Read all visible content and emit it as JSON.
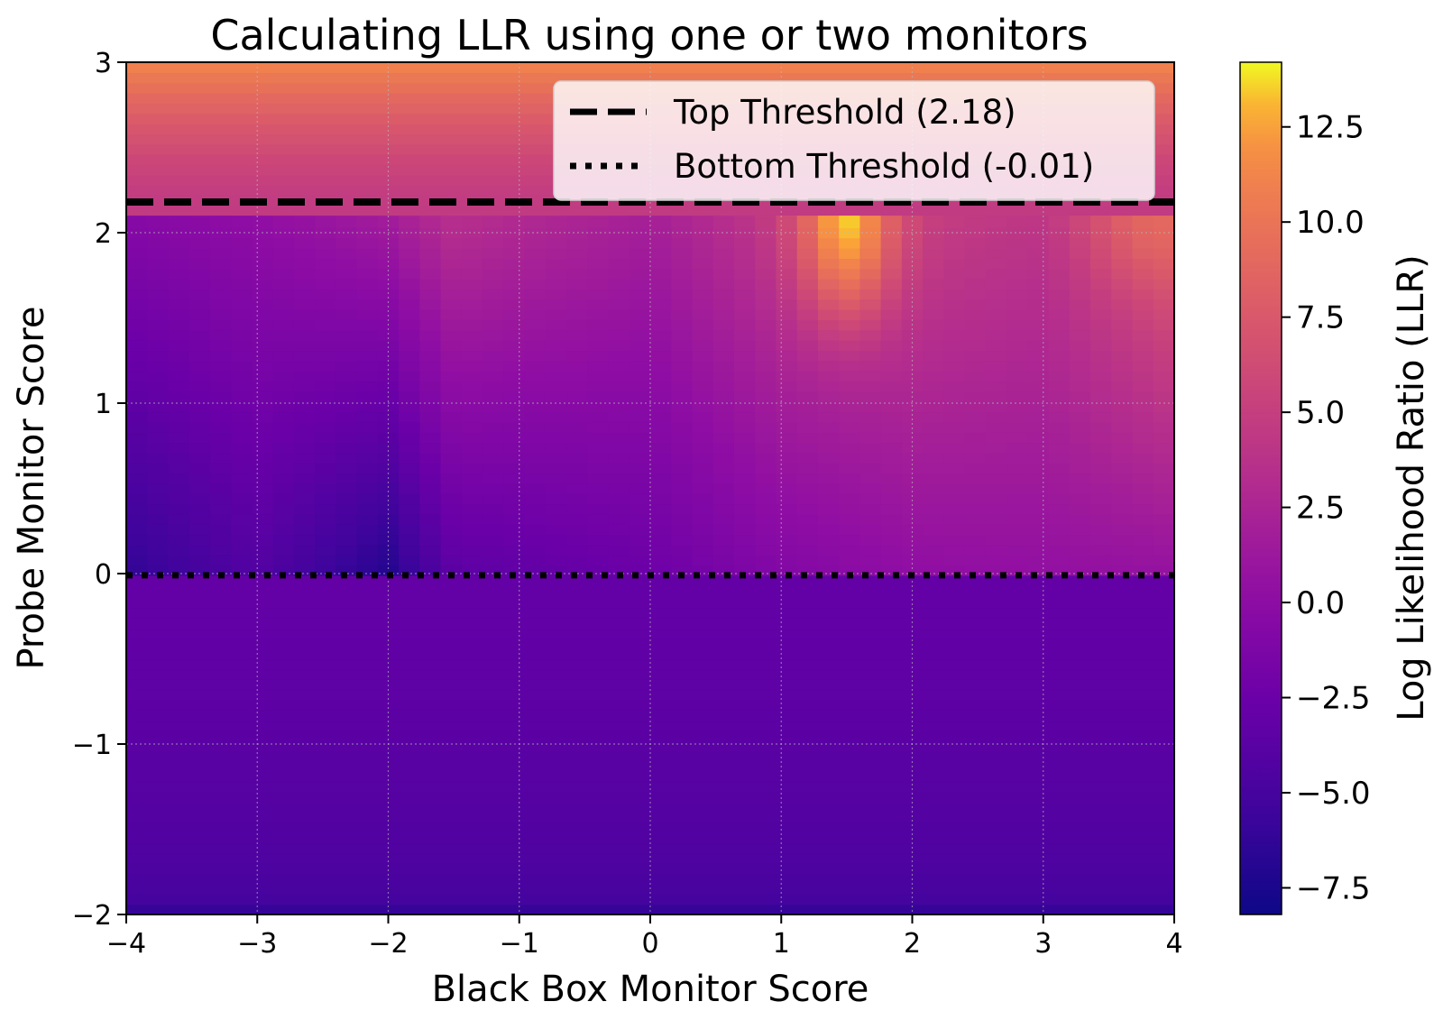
{
  "chart_data": {
    "type": "heatmap",
    "title": "Calculating LLR using one or two monitors",
    "xlabel": "Black Box Monitor Score",
    "ylabel": "Probe Monitor Score",
    "colorbar_label": "Log Likelihood Ratio (LLR)",
    "xlim": [
      -4,
      4
    ],
    "ylim": [
      -2,
      3
    ],
    "x_ticks": [
      -4,
      -3,
      -2,
      -1,
      0,
      1,
      2,
      3,
      4
    ],
    "x_tick_labels": [
      "−4",
      "−3",
      "−2",
      "−1",
      "0",
      "1",
      "2",
      "3",
      "4"
    ],
    "y_ticks": [
      -2,
      -1,
      0,
      1,
      2,
      3
    ],
    "y_tick_labels": [
      "−2",
      "−1",
      "0",
      "1",
      "2",
      "3"
    ],
    "colorbar_range": [
      -8.2,
      14.2
    ],
    "colorbar_ticks": [
      -7.5,
      -5.0,
      -2.5,
      0.0,
      2.5,
      5.0,
      7.5,
      10.0,
      12.5
    ],
    "colorbar_tick_labels": [
      "−7.5",
      "−5.0",
      "−2.5",
      "0.0",
      "2.5",
      "5.0",
      "7.5",
      "10.0",
      "12.5"
    ],
    "colormap": "plasma",
    "grid": true,
    "legend_position": "upper-right",
    "thresholds": [
      {
        "name": "Top Threshold (2.18)",
        "value": 2.18,
        "style": "dashed"
      },
      {
        "name": "Bottom Threshold (-0.01)",
        "value": -0.01,
        "style": "dotted"
      }
    ],
    "legend": [
      "Top Threshold (2.18)",
      "Bottom Threshold (-0.01)"
    ],
    "regions": {
      "top_band": {
        "y_range": [
          2.1,
          3.0
        ],
        "llr_at_bottom": 4.6,
        "llr_at_top": 11.8
      },
      "bottom_band": {
        "y_range": [
          -2.0,
          -0.01
        ],
        "llr_at_top": -3.0,
        "llr_at_bottom": -6.0
      },
      "middle": {
        "y_range": [
          -0.01,
          2.1
        ],
        "x_step": 0.16,
        "y_step": 0.06,
        "base_llr": [
          {
            "x": -4.0,
            "llr_bottom": -6.3,
            "llr_top": -0.5
          },
          {
            "x": -3.0,
            "llr_bottom": -4.2,
            "llr_top": 0.3
          },
          {
            "x": -2.0,
            "llr_bottom": -7.0,
            "llr_top": 1.8
          },
          {
            "x": -1.5,
            "llr_bottom": -3.6,
            "llr_top": 3.6
          },
          {
            "x": -1.0,
            "llr_bottom": -3.3,
            "llr_top": 3.0
          },
          {
            "x": 0.0,
            "llr_bottom": -2.5,
            "llr_top": 2.0
          },
          {
            "x": 1.0,
            "llr_bottom": -0.8,
            "llr_top": 4.6
          },
          {
            "x": 2.0,
            "llr_bottom": 0.2,
            "llr_top": 5.0
          },
          {
            "x": 3.0,
            "llr_bottom": 0.4,
            "llr_top": 4.2
          },
          {
            "x": 4.0,
            "llr_bottom": 0.6,
            "llr_top": 8.0
          }
        ],
        "hotspots": [
          {
            "x": 1.5,
            "y": 2.1,
            "peak_llr": 13.5,
            "x_spread": 0.35,
            "y_spread": 0.55
          },
          {
            "x": 3.9,
            "y": 2.1,
            "peak_llr": 9.0,
            "x_spread": 0.45,
            "y_spread": 0.35
          }
        ]
      }
    }
  }
}
